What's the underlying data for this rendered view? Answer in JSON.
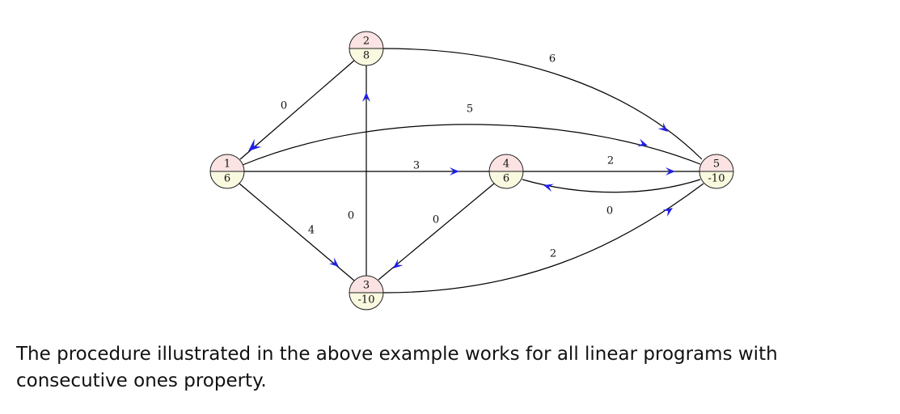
{
  "graph": {
    "nodes": [
      {
        "id": "1",
        "label": "1",
        "value": "6"
      },
      {
        "id": "2",
        "label": "2",
        "value": "8"
      },
      {
        "id": "3",
        "label": "3",
        "value": "-10"
      },
      {
        "id": "4",
        "label": "4",
        "value": "6"
      },
      {
        "id": "5",
        "label": "5",
        "value": "-10"
      }
    ],
    "edges": [
      {
        "from": "2",
        "to": "1",
        "label": "0"
      },
      {
        "from": "2",
        "to": "5",
        "label": "6"
      },
      {
        "from": "1",
        "to": "5",
        "label": "5"
      },
      {
        "from": "1",
        "to": "4",
        "label": "3"
      },
      {
        "from": "4",
        "to": "5",
        "label": "2"
      },
      {
        "from": "5",
        "to": "4",
        "label": "0"
      },
      {
        "from": "3",
        "to": "2",
        "label": "0"
      },
      {
        "from": "1",
        "to": "3",
        "label": "4"
      },
      {
        "from": "4",
        "to": "3",
        "label": "0"
      },
      {
        "from": "3",
        "to": "5",
        "label": "2"
      }
    ]
  },
  "caption": "The procedure illustrated in the above example works for all linear programs with consecutive ones property."
}
